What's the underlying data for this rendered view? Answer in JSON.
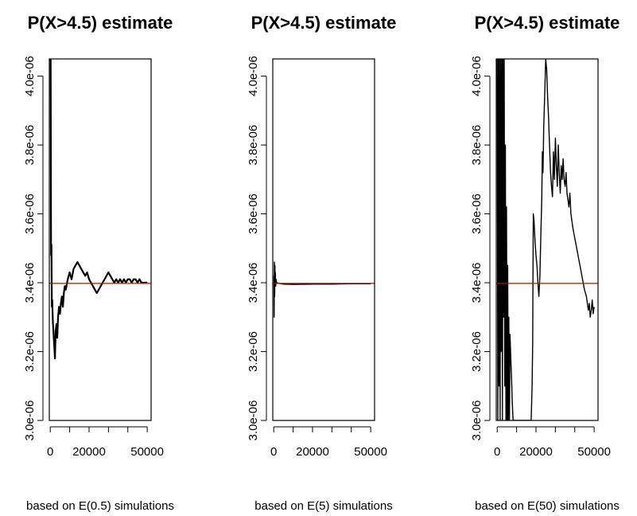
{
  "chart_data": [
    {
      "type": "line",
      "title": "P(X>4.5) estimate",
      "xlabel": "based on E(0.5) simulations",
      "ylabel": "",
      "xlim": [
        -500,
        52000
      ],
      "ylim": [
        3e-06,
        4.05e-06
      ],
      "xticks": [
        0,
        20000,
        50000
      ],
      "xtick_labels": [
        "0",
        "20000",
        "50000"
      ],
      "yticks": [
        3e-06,
        3.2e-06,
        3.4e-06,
        3.6e-06,
        3.8e-06,
        4e-06
      ],
      "ytick_labels": [
        "3.0e-06",
        "3.2e-06",
        "3.4e-06",
        "3.6e-06",
        "3.8e-06",
        "4.0e-06"
      ],
      "reference_line": {
        "y": 3.398e-06,
        "color": "#cc0000"
      },
      "series": [
        {
          "color": "#000000",
          "x": [
            200,
            400,
            600,
            800,
            1000,
            1300,
            1700,
            2000,
            2400,
            2800,
            3200,
            3600,
            4000,
            4500,
            5000,
            5500,
            6000,
            6500,
            7000,
            7500,
            8000,
            9000,
            10000,
            11000,
            12000,
            13000,
            14000,
            15000,
            16000,
            17000,
            18000,
            19000,
            20000,
            21000,
            22000,
            23000,
            24000,
            25000,
            26000,
            27000,
            28000,
            29000,
            30000,
            31000,
            32000,
            33000,
            34000,
            35000,
            36000,
            37000,
            38000,
            39000,
            40000,
            41000,
            42000,
            43000,
            44000,
            45000,
            46000,
            47000,
            48000,
            49000,
            50000
          ],
          "values": [
            4.05e-06,
            3.48e-06,
            3.51e-06,
            3.33e-06,
            3.35e-06,
            3.29e-06,
            3.25e-06,
            3.22e-06,
            3.18e-06,
            3.26e-06,
            3.28e-06,
            3.24e-06,
            3.3e-06,
            3.33e-06,
            3.31e-06,
            3.34e-06,
            3.36e-06,
            3.33e-06,
            3.37e-06,
            3.39e-06,
            3.38e-06,
            3.41e-06,
            3.43e-06,
            3.41e-06,
            3.44e-06,
            3.45e-06,
            3.46e-06,
            3.45e-06,
            3.44e-06,
            3.43e-06,
            3.42e-06,
            3.43e-06,
            3.41e-06,
            3.4e-06,
            3.39e-06,
            3.38e-06,
            3.37e-06,
            3.38e-06,
            3.39e-06,
            3.4e-06,
            3.41e-06,
            3.42e-06,
            3.43e-06,
            3.42e-06,
            3.41e-06,
            3.4e-06,
            3.41e-06,
            3.4e-06,
            3.41e-06,
            3.4e-06,
            3.41e-06,
            3.4e-06,
            3.41e-06,
            3.41e-06,
            3.4e-06,
            3.41e-06,
            3.41e-06,
            3.4e-06,
            3.41e-06,
            3.4e-06,
            3.4e-06,
            3.4e-06,
            3.4e-06
          ]
        }
      ]
    },
    {
      "type": "line",
      "title": "P(X>4.5) estimate",
      "xlabel": "based on E(5) simulations",
      "ylabel": "",
      "xlim": [
        -500,
        52000
      ],
      "ylim": [
        3e-06,
        4.05e-06
      ],
      "xticks": [
        0,
        20000,
        50000
      ],
      "xtick_labels": [
        "0",
        "20000",
        "50000"
      ],
      "yticks": [
        3e-06,
        3.2e-06,
        3.4e-06,
        3.6e-06,
        3.8e-06,
        4e-06
      ],
      "ytick_labels": [
        "3.0e-06",
        "3.2e-06",
        "3.4e-06",
        "3.6e-06",
        "3.8e-06",
        "4.0e-06"
      ],
      "reference_line": {
        "y": 3.398e-06,
        "color": "#cc0000"
      },
      "series": [
        {
          "color": "#000000",
          "x": [
            100,
            200,
            300,
            400,
            500,
            600,
            700,
            800,
            1000,
            1200,
            1500,
            2000,
            3000,
            5000,
            10000,
            20000,
            30000,
            40000,
            50000
          ],
          "values": [
            3.42e-06,
            3.3e-06,
            3.46e-06,
            3.44e-06,
            3.36e-06,
            3.45e-06,
            3.4e-06,
            3.43e-06,
            3.39e-06,
            3.41e-06,
            3.4e-06,
            3.399e-06,
            3.398e-06,
            3.396e-06,
            3.395e-06,
            3.396e-06,
            3.396e-06,
            3.397e-06,
            3.397e-06
          ]
        }
      ]
    },
    {
      "type": "line",
      "title": "P(X>4.5) estimate",
      "xlabel": "based on E(50) simulations",
      "ylabel": "",
      "xlim": [
        -500,
        52000
      ],
      "ylim": [
        3e-06,
        4.05e-06
      ],
      "xticks": [
        0,
        20000,
        50000
      ],
      "xtick_labels": [
        "0",
        "20000",
        "50000"
      ],
      "yticks": [
        3e-06,
        3.2e-06,
        3.4e-06,
        3.6e-06,
        3.8e-06,
        4e-06
      ],
      "ytick_labels": [
        "3.0e-06",
        "3.2e-06",
        "3.4e-06",
        "3.6e-06",
        "3.8e-06",
        "4.0e-06"
      ],
      "reference_line": {
        "y": 3.398e-06,
        "color": "#cc0000"
      },
      "series": [
        {
          "color": "#000000",
          "x": [
            0,
            300,
            600,
            900,
            1200,
            1500,
            1800,
            2100,
            2400,
            2700,
            3000,
            3300,
            3600,
            3900,
            4200,
            4500,
            4800,
            5100,
            5400,
            5700,
            6000,
            6300,
            6600,
            7000,
            7400,
            7800,
            8200,
            8600,
            9000,
            17500,
            18000,
            18300,
            18600,
            19000,
            19500,
            20000,
            20500,
            21000,
            21500,
            22000,
            22500,
            23000,
            23300,
            23600,
            24000,
            24500,
            25000,
            25500,
            26000,
            26500,
            27000,
            27500,
            28000,
            28500,
            29000,
            29500,
            30000,
            30500,
            31000,
            31500,
            32000,
            32500,
            33000,
            33500,
            34000,
            34500,
            35000,
            35500,
            36000,
            36500,
            37000,
            37500,
            38000,
            38500,
            39000,
            40000,
            41000,
            42000,
            43000,
            44000,
            45000,
            46000,
            47000,
            47500,
            48000,
            48500,
            49000,
            49500,
            50000
          ],
          "values": [
            4.05e-06,
            3e-06,
            4.05e-06,
            3.1e-06,
            4.05e-06,
            3e-06,
            4.05e-06,
            3.2e-06,
            4.05e-06,
            3e-06,
            4.05e-06,
            3.3e-06,
            4.05e-06,
            3.1e-06,
            3.8e-06,
            3e-06,
            3.62e-06,
            3e-06,
            3.45e-06,
            3e-06,
            3.3e-06,
            3e-06,
            3.25e-06,
            3.18e-06,
            3.12e-06,
            3.05e-06,
            3e-06,
            3e-06,
            3e-06,
            3e-06,
            3.1e-06,
            3.22e-06,
            3.6e-06,
            3.58e-06,
            3.52e-06,
            3.48e-06,
            3.45e-06,
            3.4e-06,
            3.36e-06,
            3.42e-06,
            3.54e-06,
            3.65e-06,
            3.78e-06,
            3.72e-06,
            3.85e-06,
            3.95e-06,
            4.05e-06,
            4.02e-06,
            3.94e-06,
            3.88e-06,
            3.8e-06,
            3.72e-06,
            3.68e-06,
            3.65e-06,
            3.78e-06,
            3.7e-06,
            3.82e-06,
            3.74e-06,
            3.68e-06,
            3.8e-06,
            3.72e-06,
            3.66e-06,
            3.74e-06,
            3.7e-06,
            3.76e-06,
            3.7e-06,
            3.68e-06,
            3.72e-06,
            3.66e-06,
            3.64e-06,
            3.62e-06,
            3.66e-06,
            3.6e-06,
            3.58e-06,
            3.56e-06,
            3.53e-06,
            3.5e-06,
            3.47e-06,
            3.44e-06,
            3.41e-06,
            3.38e-06,
            3.36e-06,
            3.32e-06,
            3.34e-06,
            3.3e-06,
            3.32e-06,
            3.35e-06,
            3.31e-06,
            3.33e-06
          ]
        }
      ]
    }
  ]
}
